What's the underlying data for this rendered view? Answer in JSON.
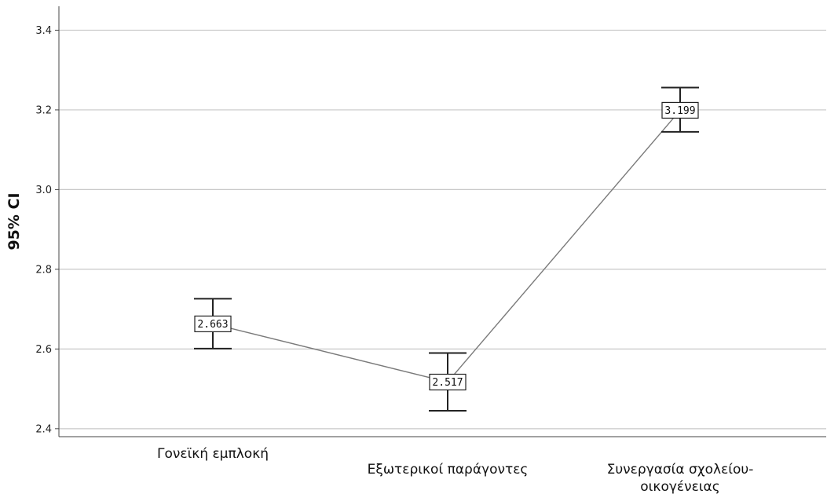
{
  "chart_data": {
    "type": "line",
    "ylabel": "95% CI",
    "xlabel": "",
    "ylim": [
      2.38,
      3.46
    ],
    "yticks": [
      "2.4",
      "2.6",
      "2.8",
      "3.0",
      "3.2",
      "3.4"
    ],
    "grid": true,
    "categories": [
      [
        "Γονεϊκή εμπλοκή"
      ],
      [
        "Εξωτερικοί παράγοντες"
      ],
      [
        "Συνεργασία σχολείου-",
        "οικογένειας"
      ]
    ],
    "means": [
      2.663,
      2.517,
      3.199
    ],
    "mean_labels": [
      "2.663",
      "2.517",
      "3.199"
    ],
    "ci_lower": [
      2.601,
      2.445,
      3.145
    ],
    "ci_upper": [
      2.726,
      2.59,
      3.256
    ],
    "colors": {
      "line": "#7a7a7a",
      "grid": "#c8c8c8",
      "axis": "#444444",
      "errorbar": "#222222"
    }
  }
}
